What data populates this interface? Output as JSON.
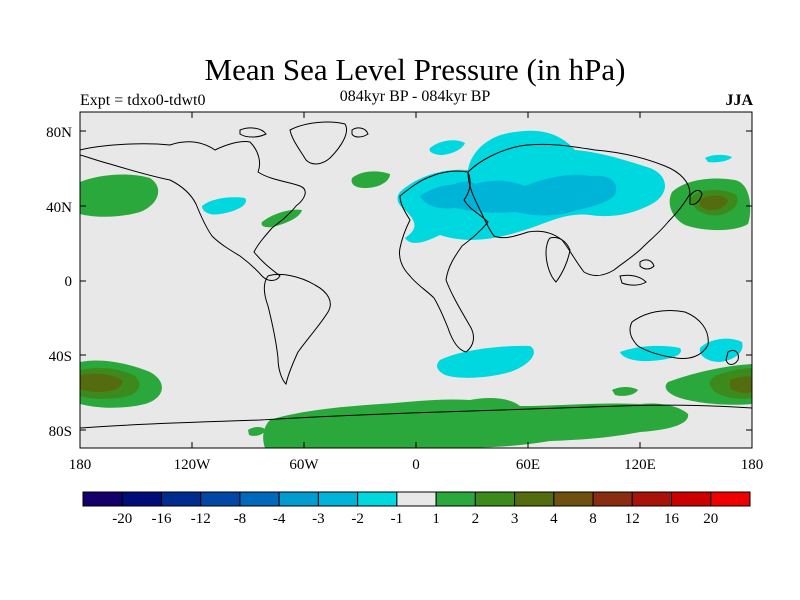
{
  "title": "Mean Sea Level Pressure (in hPa)",
  "subtitle_left": "Expt = tdxo0-tdwt0",
  "subtitle_center": "084kyr BP - 084kyr BP",
  "subtitle_right": "JJA",
  "x_ticks": [
    "180",
    "120W",
    "60W",
    "0",
    "60E",
    "120E",
    "180"
  ],
  "y_ticks": [
    "80N",
    "40N",
    "0",
    "40S",
    "80S"
  ],
  "colorbar": {
    "labels": [
      "-20",
      "-16",
      "-12",
      "-8",
      "-4",
      "-3",
      "-2",
      "-1",
      "1",
      "2",
      "3",
      "4",
      "8",
      "12",
      "16",
      "20"
    ],
    "colors": [
      "#15006b",
      "#000d78",
      "#002b8f",
      "#0047a6",
      "#0069bc",
      "#009ccf",
      "#00b4d8",
      "#00d8e0",
      "#e8e8e8",
      "#2aa83c",
      "#3d8a1c",
      "#556b10",
      "#6e5010",
      "#8a2c10",
      "#a81208",
      "#cc0000",
      "#ee0000"
    ]
  },
  "colors": {
    "background": "#e8e8e8",
    "land_outline": "#000000"
  }
}
